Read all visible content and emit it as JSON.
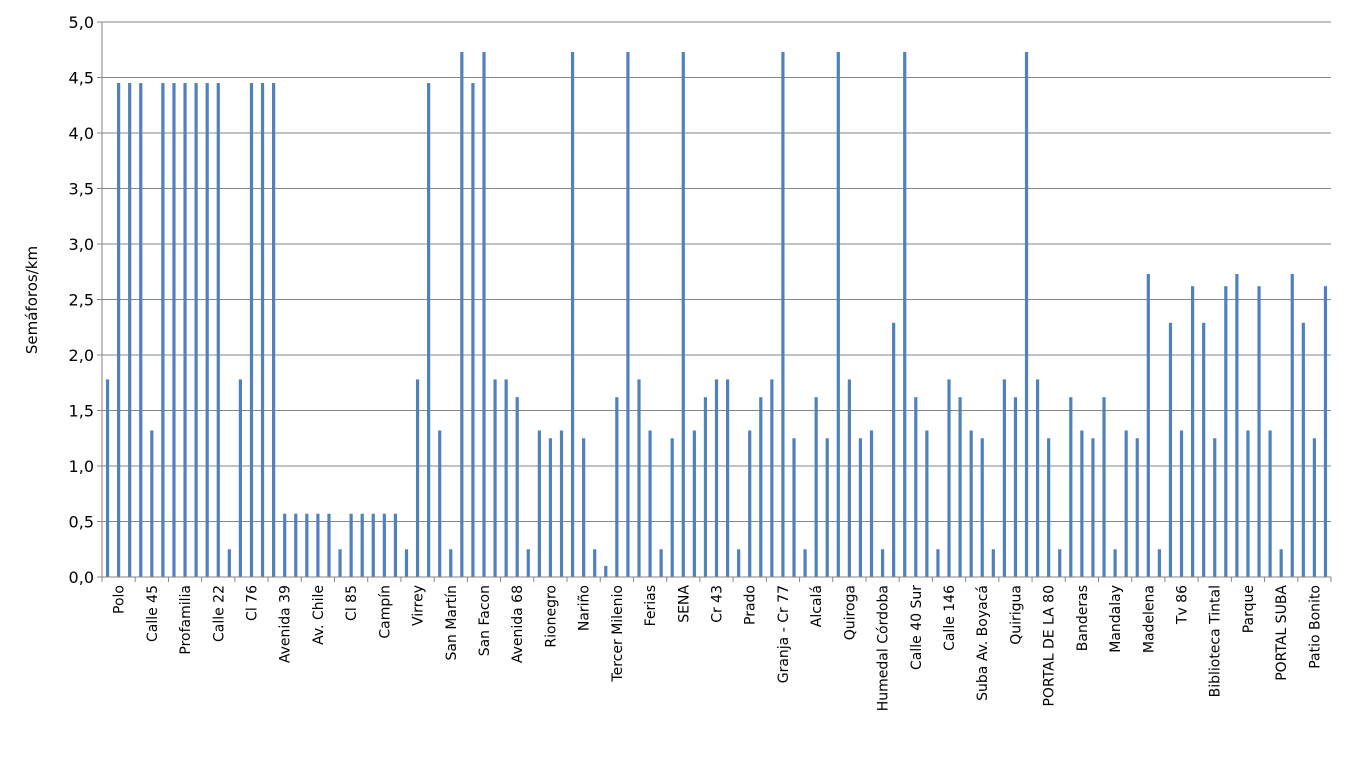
{
  "chart_data": {
    "type": "bar",
    "title": "",
    "xlabel": "",
    "ylabel": "Semáforos/km",
    "ylim": [
      0,
      5
    ],
    "yticks": [
      "0,0",
      "0,5",
      "1,0",
      "1,5",
      "2,0",
      "2,5",
      "3,0",
      "3,5",
      "4,0",
      "4,5",
      "5,0"
    ],
    "grid": true,
    "legend": "none",
    "bar_color": "#4F81BD",
    "values": [
      1.78,
      4.45,
      4.45,
      4.45,
      1.32,
      4.45,
      4.45,
      4.45,
      4.45,
      4.45,
      4.45,
      0.25,
      1.78,
      4.45,
      4.45,
      4.45,
      0.57,
      0.57,
      0.57,
      0.57,
      0.57,
      0.25,
      0.57,
      0.57,
      0.57,
      0.57,
      0.57,
      0.25,
      1.78,
      4.45,
      1.32,
      0.25,
      4.73,
      4.45,
      4.73,
      1.78,
      1.78,
      1.62,
      0.25,
      1.32,
      1.25,
      1.32,
      4.73,
      1.25,
      0.25,
      0.1,
      1.62,
      4.73,
      1.78,
      1.32,
      0.25,
      1.25,
      4.73,
      1.32,
      1.62,
      1.78,
      1.78,
      0.25,
      1.32,
      1.62,
      1.78,
      4.73,
      1.25,
      0.25,
      1.62,
      1.25,
      4.73,
      1.78,
      1.25,
      1.32,
      0.25,
      2.29,
      4.73,
      1.62,
      1.32,
      0.25,
      1.78,
      1.62,
      1.32,
      1.25,
      0.25,
      1.78,
      1.62,
      4.73,
      1.78,
      1.25,
      0.25,
      1.62,
      1.32,
      1.25,
      1.62,
      0.25,
      1.32,
      1.25,
      2.73,
      0.25,
      2.29,
      1.32,
      2.62,
      2.29,
      1.25,
      2.62,
      2.73,
      1.32,
      2.62,
      1.32,
      0.25,
      2.73,
      2.29,
      1.25,
      2.62
    ],
    "category_labels": [
      {
        "index": 0,
        "text": "Polo"
      },
      {
        "index": 3,
        "text": "Calle 45"
      },
      {
        "index": 6,
        "text": "Profamilia"
      },
      {
        "index": 9,
        "text": "Calle 22"
      },
      {
        "index": 12,
        "text": "Cl 76"
      },
      {
        "index": 15,
        "text": "Avenida 39"
      },
      {
        "index": 18,
        "text": "Av. Chile"
      },
      {
        "index": 21,
        "text": "Cl 85"
      },
      {
        "index": 24,
        "text": "Campín"
      },
      {
        "index": 27,
        "text": "Virrey"
      },
      {
        "index": 30,
        "text": "San Martín"
      },
      {
        "index": 33,
        "text": "San Facon"
      },
      {
        "index": 36,
        "text": "Avenida 68"
      },
      {
        "index": 39,
        "text": "Rionegro"
      },
      {
        "index": 42,
        "text": "Nariño"
      },
      {
        "index": 45,
        "text": "Tercer Milenio"
      },
      {
        "index": 48,
        "text": "Ferias"
      },
      {
        "index": 51,
        "text": "SENA"
      },
      {
        "index": 54,
        "text": "Cr 43"
      },
      {
        "index": 57,
        "text": "Prado"
      },
      {
        "index": 60,
        "text": "Granja - Cr 77"
      },
      {
        "index": 63,
        "text": "Alcalá"
      },
      {
        "index": 66,
        "text": "Quiroga"
      },
      {
        "index": 69,
        "text": "Humedal Córdoba"
      },
      {
        "index": 72,
        "text": "Calle 40 Sur"
      },
      {
        "index": 75,
        "text": "Calle 146"
      },
      {
        "index": 78,
        "text": "Suba Av. Boyacá"
      },
      {
        "index": 81,
        "text": "Quirigua"
      },
      {
        "index": 84,
        "text": "PORTAL DE LA 80"
      },
      {
        "index": 87,
        "text": "Banderas"
      },
      {
        "index": 90,
        "text": "Mandalay"
      },
      {
        "index": 93,
        "text": "Madelena"
      },
      {
        "index": 96,
        "text": "Tv 86"
      },
      {
        "index": 99,
        "text": "Biblioteca Tintal"
      },
      {
        "index": 102,
        "text": "Parque"
      },
      {
        "index": 105,
        "text": "PORTAL SUBA"
      },
      {
        "index": 108,
        "text": "Patio Bonito"
      }
    ]
  }
}
